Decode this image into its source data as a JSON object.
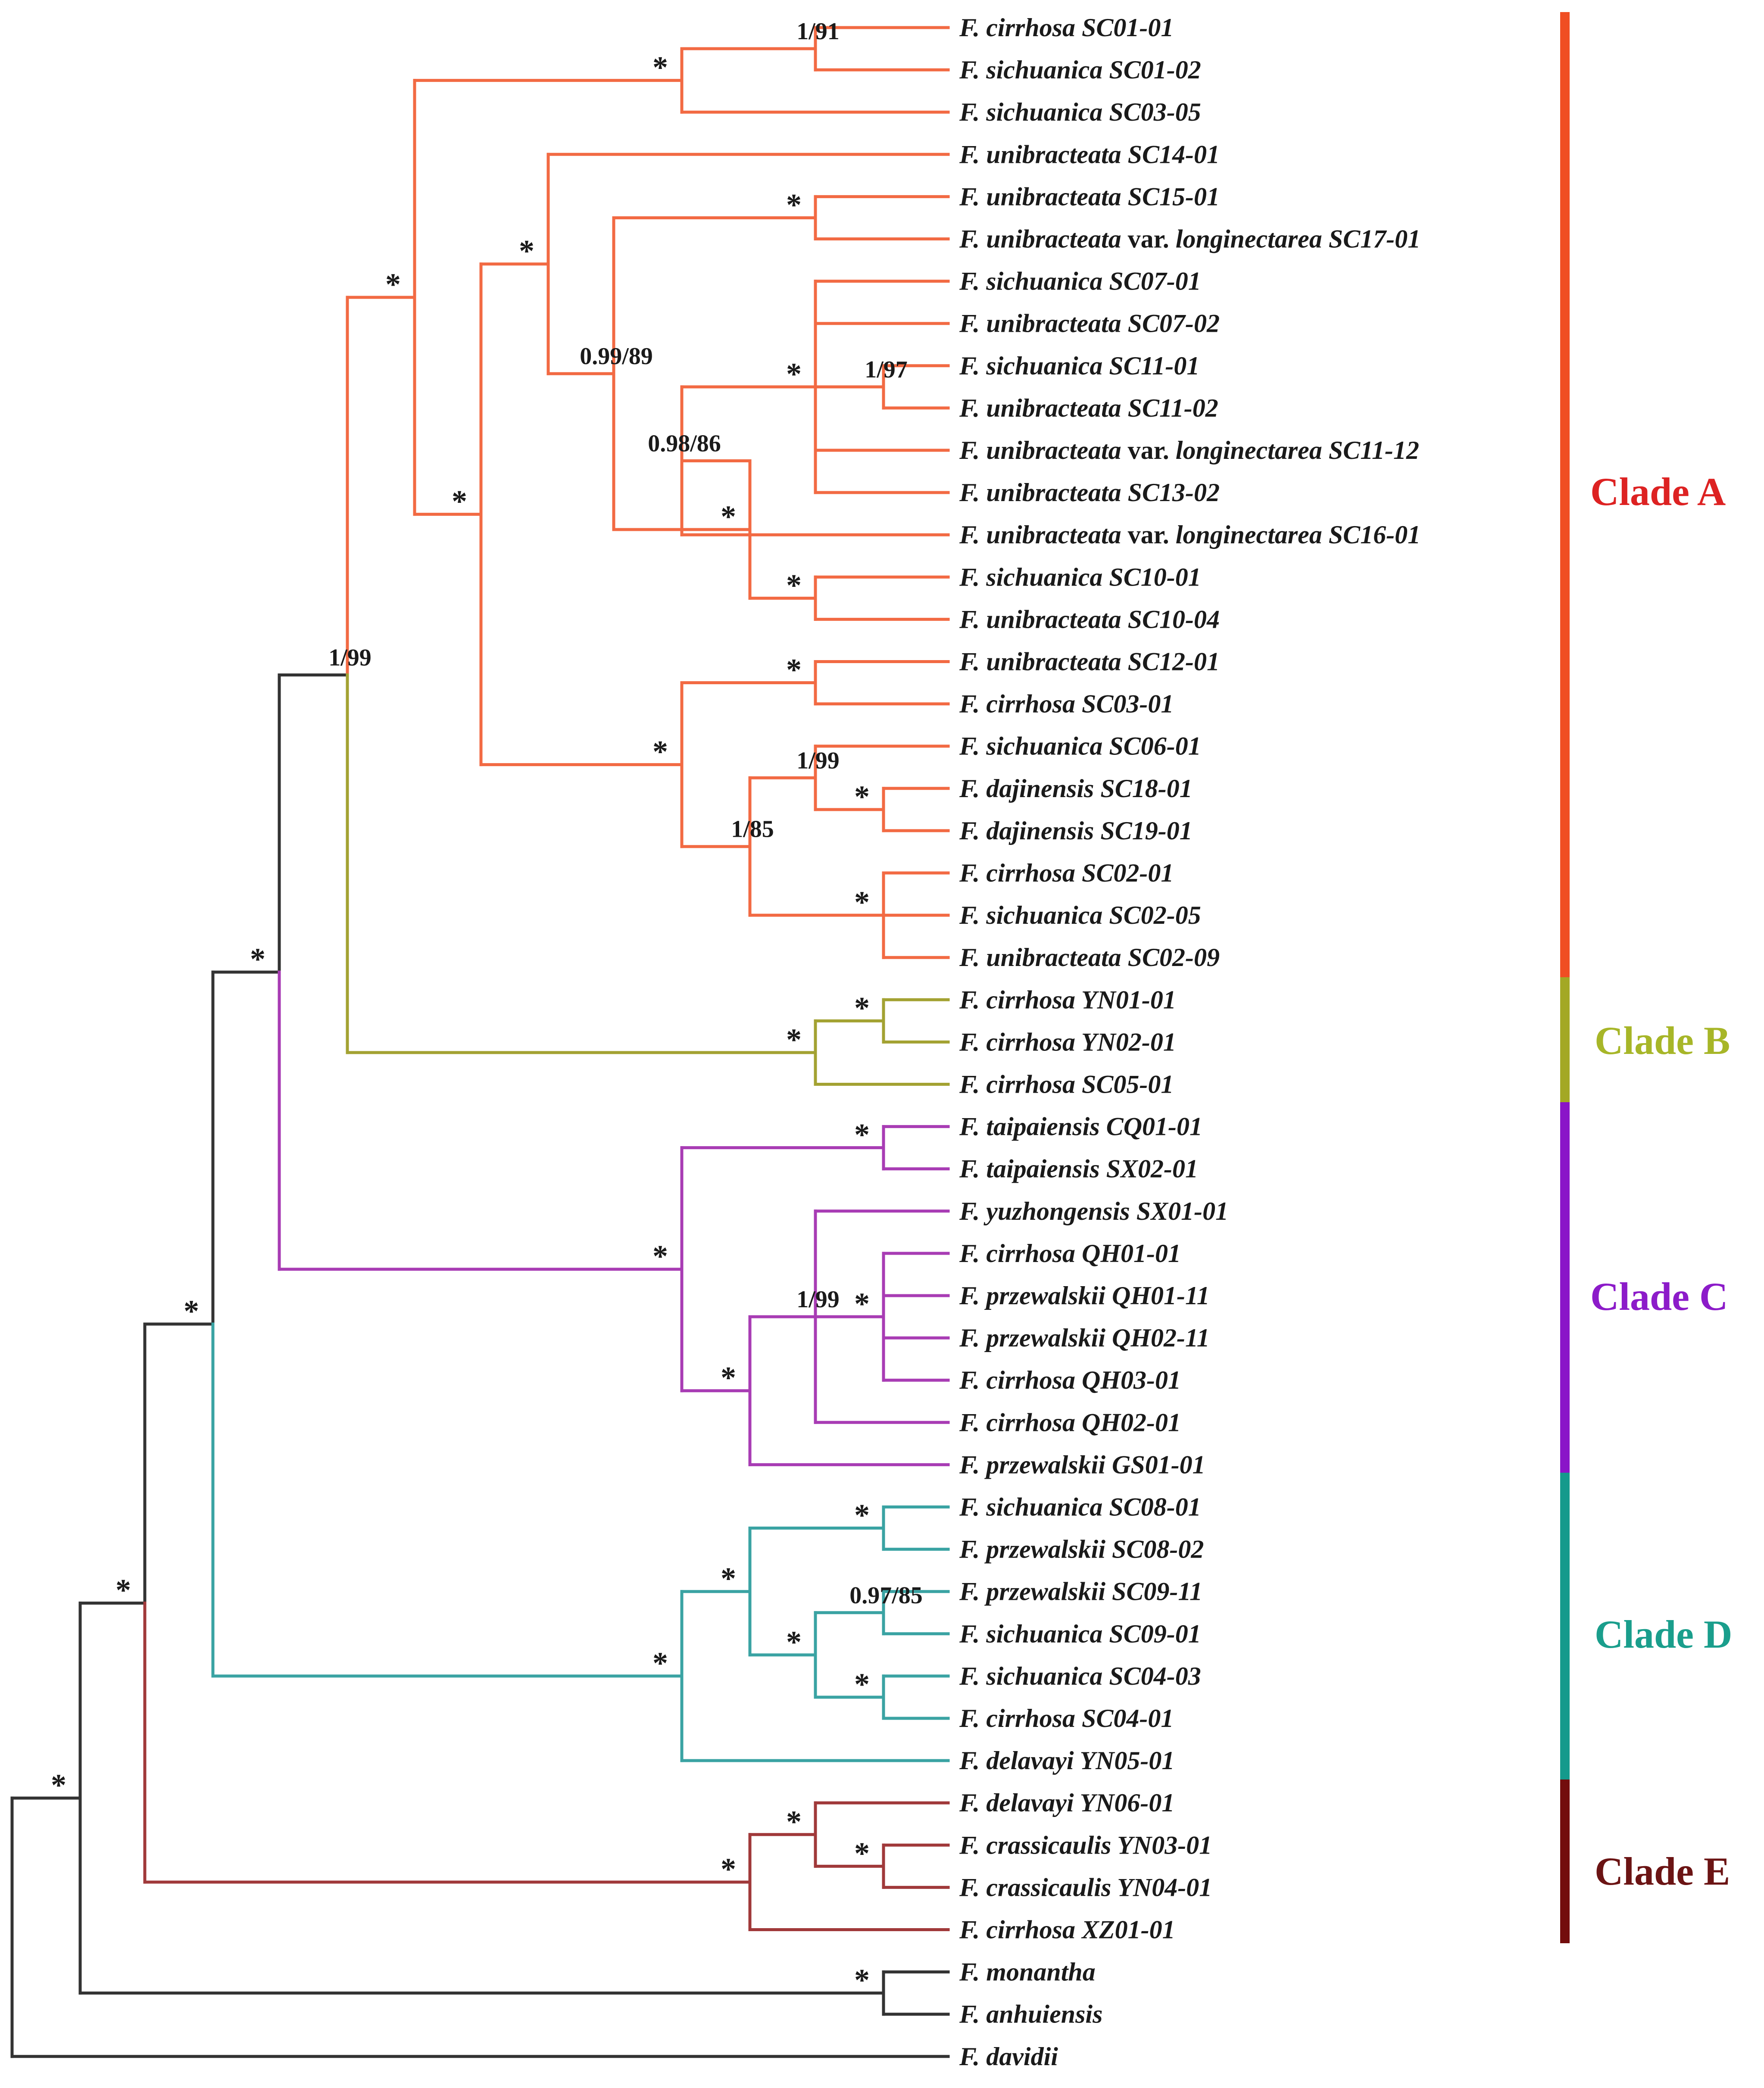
{
  "colors": {
    "backbone": "#333333",
    "clade_a": "#f26a43",
    "clade_b": "#a3a232",
    "clade_c": "#a83cb4",
    "clade_d": "#3aa3a3",
    "clade_e": "#a0393a",
    "bar_a": "#f04e23",
    "bar_b": "#a3a825",
    "bar_c": "#8a14c8",
    "bar_d": "#149a8c",
    "bar_e": "#730d0d",
    "text_a": "#dd2222",
    "text_b": "#a7b628",
    "text_c": "#8c1bc9",
    "text_d": "#1a9e8c",
    "text_e": "#6b1414"
  },
  "taxa": [
    {
      "genus": "F.",
      "epithet": "cirrhosa",
      "code": "SC01-01"
    },
    {
      "genus": "F.",
      "epithet": "sichuanica",
      "code": "SC01-02"
    },
    {
      "genus": "F.",
      "epithet": "sichuanica",
      "code": "SC03-05"
    },
    {
      "genus": "F.",
      "epithet": "unibracteata",
      "code": "SC14-01"
    },
    {
      "genus": "F.",
      "epithet": "unibracteata",
      "code": "SC15-01"
    },
    {
      "genus": "F.",
      "epithet": "unibracteata",
      "rank": "var.",
      "infra": "longinectarea",
      "code": "SC17-01"
    },
    {
      "genus": "F.",
      "epithet": "sichuanica",
      "code": "SC07-01"
    },
    {
      "genus": "F.",
      "epithet": "unibracteata",
      "code": "SC07-02"
    },
    {
      "genus": "F.",
      "epithet": "sichuanica",
      "code": "SC11-01"
    },
    {
      "genus": "F.",
      "epithet": "unibracteata",
      "code": "SC11-02"
    },
    {
      "genus": "F.",
      "epithet": "unibracteata",
      "rank": "var.",
      "infra": "longinectarea",
      "code": "SC11-12"
    },
    {
      "genus": "F.",
      "epithet": "unibracteata",
      "code": "SC13-02"
    },
    {
      "genus": "F.",
      "epithet": "unibracteata",
      "rank": "var.",
      "infra": "longinectarea",
      "code": "SC16-01"
    },
    {
      "genus": "F.",
      "epithet": "sichuanica",
      "code": "SC10-01"
    },
    {
      "genus": "F.",
      "epithet": "unibracteata",
      "code": "SC10-04"
    },
    {
      "genus": "F.",
      "epithet": "unibracteata",
      "code": "SC12-01"
    },
    {
      "genus": "F.",
      "epithet": "cirrhosa",
      "code": "SC03-01"
    },
    {
      "genus": "F.",
      "epithet": "sichuanica",
      "code": "SC06-01"
    },
    {
      "genus": "F.",
      "epithet": "dajinensis",
      "code": "SC18-01"
    },
    {
      "genus": "F.",
      "epithet": "dajinensis",
      "code": "SC19-01"
    },
    {
      "genus": "F.",
      "epithet": "cirrhosa",
      "code": "SC02-01"
    },
    {
      "genus": "F.",
      "epithet": "sichuanica",
      "code": "SC02-05"
    },
    {
      "genus": "F.",
      "epithet": "unibracteata",
      "code": "SC02-09"
    },
    {
      "genus": "F.",
      "epithet": "cirrhosa",
      "code": "YN01-01"
    },
    {
      "genus": "F.",
      "epithet": "cirrhosa",
      "code": "YN02-01"
    },
    {
      "genus": "F.",
      "epithet": "cirrhosa",
      "code": "SC05-01"
    },
    {
      "genus": "F.",
      "epithet": "taipaiensis",
      "code": "CQ01-01"
    },
    {
      "genus": "F.",
      "epithet": "taipaiensis",
      "code": "SX02-01"
    },
    {
      "genus": "F.",
      "epithet": "yuzhongensis",
      "code": "SX01-01"
    },
    {
      "genus": "F.",
      "epithet": "cirrhosa",
      "code": "QH01-01"
    },
    {
      "genus": "F.",
      "epithet": "przewalskii",
      "code": "QH01-11"
    },
    {
      "genus": "F.",
      "epithet": "przewalskii",
      "code": "QH02-11"
    },
    {
      "genus": "F.",
      "epithet": "cirrhosa",
      "code": "QH03-01"
    },
    {
      "genus": "F.",
      "epithet": "cirrhosa",
      "code": "QH02-01"
    },
    {
      "genus": "F.",
      "epithet": "przewalskii",
      "code": "GS01-01"
    },
    {
      "genus": "F.",
      "epithet": "sichuanica",
      "code": "SC08-01"
    },
    {
      "genus": "F.",
      "epithet": "przewalskii",
      "code": "SC08-02"
    },
    {
      "genus": "F.",
      "epithet": "przewalskii",
      "code": "SC09-11"
    },
    {
      "genus": "F.",
      "epithet": "sichuanica",
      "code": "SC09-01"
    },
    {
      "genus": "F.",
      "epithet": "sichuanica",
      "code": "SC04-03"
    },
    {
      "genus": "F.",
      "epithet": "cirrhosa",
      "code": "SC04-01"
    },
    {
      "genus": "F.",
      "epithet": "delavayi",
      "code": "YN05-01"
    },
    {
      "genus": "F.",
      "epithet": "delavayi",
      "code": "YN06-01"
    },
    {
      "genus": "F.",
      "epithet": "crassicaulis",
      "code": "YN03-01"
    },
    {
      "genus": "F.",
      "epithet": "crassicaulis",
      "code": "YN04-01"
    },
    {
      "genus": "F.",
      "epithet": "cirrhosa",
      "code": "XZ01-01"
    },
    {
      "genus": "F.",
      "epithet": "monantha",
      "code": ""
    },
    {
      "genus": "F.",
      "epithet": "anhuiensis",
      "code": ""
    },
    {
      "genus": "F.",
      "epithet": "davidii",
      "code": ""
    }
  ],
  "support_labels": {
    "sc01_01_sc01_02": "1/91",
    "sc01_sc03": "*",
    "clade_a_upper": "*",
    "clade_a_lower": "*",
    "unibracteata_group": "*",
    "sc15_sc17": "*",
    "sc14_node": "0.99/89",
    "sc07_sc13_group": "*",
    "sc11_pair": "1/97",
    "sc07_sc16_group": "0.98/86",
    "sc07_sc10_group": "*",
    "sc10_pair": "*",
    "sc12_sc02_group": "*",
    "sc12_sc03_pair": "*",
    "sc06_dajinensis": "1/99",
    "dajinensis_pair": "*",
    "sc06_sc02_group": "1/85",
    "sc02_triple": "*",
    "clade_a_b": "1/99",
    "yn_pair": "*",
    "clade_b": "*",
    "clade_abc": "*",
    "taipaiensis_pair": "*",
    "clade_c": "*",
    "qh_group": "*",
    "qh_yuzhongensis": "1/99",
    "qh_gs": "*",
    "clade_abcd": "*",
    "sc08_pair": "*",
    "sc08_sc04": "*",
    "sc09_pair": "0.97/85",
    "sc09_sc04": "*",
    "sc04_pair": "*",
    "clade_d": "*",
    "clade_abcde": "*",
    "clade_e": "*",
    "yn06_yn03": "*",
    "crassicaulis_pair": "*",
    "outgroup_pair": "*",
    "root": "*"
  },
  "clades": {
    "a": "Clade A",
    "b": "Clade B",
    "c": "Clade C",
    "d": "Clade D",
    "e": "Clade E"
  }
}
